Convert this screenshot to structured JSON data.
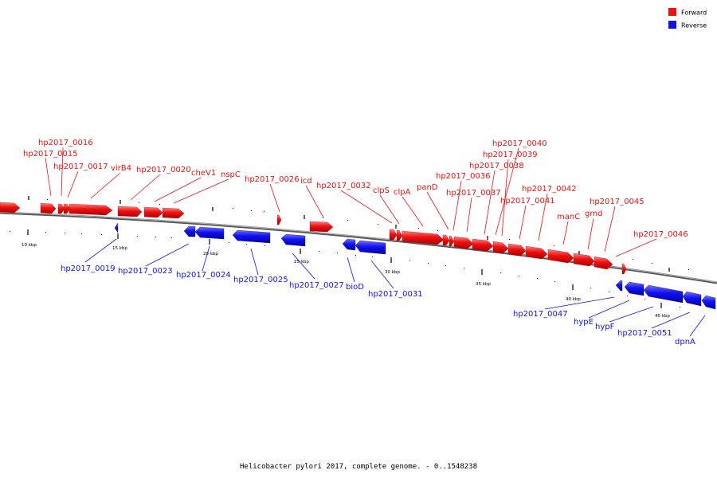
{
  "caption": "Helicobacter pylori 2017, complete genome. - 0..1548238",
  "legend": [
    {
      "label": "Forward",
      "color": "#ee1111"
    },
    {
      "label": "Reverse",
      "color": "#1111ee"
    }
  ],
  "colors": {
    "forward": "#ee1111",
    "reverse": "#1111ee",
    "backbone": "#888888"
  },
  "scale_ticks": [
    "10 kbp",
    "15 kbp",
    "20 kbp",
    "25 kbp",
    "30 kbp",
    "35 kbp",
    "40 kbp",
    "45 kbp"
  ],
  "genes_forward": [
    "hp2017_0016",
    "hp2017_0015",
    "hp2017_0017",
    "virB4",
    "hp2017_0020",
    "cheV1",
    "nspC",
    "hp2017_0026",
    "icd",
    "hp2017_0032",
    "clpS",
    "clpA",
    "panD",
    "hp2017_0036",
    "hp2017_0037",
    "hp2017_0040",
    "hp2017_0039",
    "hp2017_0038",
    "hp2017_0042",
    "hp2017_0041",
    "manC",
    "gmd",
    "hp2017_0045",
    "hp2017_0046"
  ],
  "genes_reverse": [
    "hp2017_0019",
    "hp2017_0023",
    "hp2017_0024",
    "hp2017_0025",
    "hp2017_0027",
    "bioD",
    "hp2017_0031",
    "hp2017_0047",
    "hypE",
    "hypF",
    "hp2017_0051",
    "dpnA"
  ]
}
